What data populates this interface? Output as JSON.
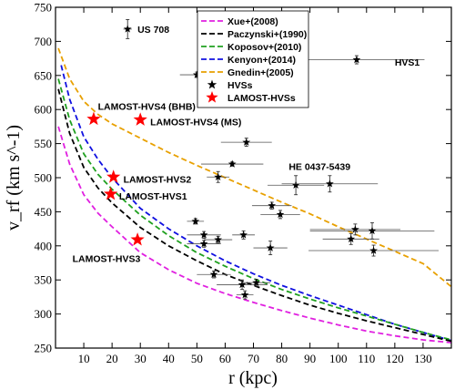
{
  "chart_data": {
    "type": "scatter",
    "title": "",
    "xlabel": "r (kpc)",
    "ylabel": "v_rf (km s^-1)",
    "xlim": [
      0,
      140
    ],
    "ylim": [
      250,
      750
    ],
    "x_ticks": [
      10,
      20,
      30,
      40,
      50,
      60,
      70,
      80,
      90,
      100,
      110,
      120,
      130
    ],
    "y_ticks": [
      250,
      300,
      350,
      400,
      450,
      500,
      550,
      600,
      650,
      700,
      750
    ],
    "grid": false,
    "legend_position": "top-center",
    "legend": [
      {
        "label": "Xue+(2008)",
        "kind": "line",
        "color": "#e020e0"
      },
      {
        "label": "Paczynski+(1990)",
        "kind": "line",
        "color": "#000000"
      },
      {
        "label": "Koposov+(2010)",
        "kind": "line",
        "color": "#20a020"
      },
      {
        "label": "Kenyon+(2014)",
        "kind": "line",
        "color": "#1010e0"
      },
      {
        "label": "Gnedin+(2005)",
        "kind": "line",
        "color": "#e8a000"
      },
      {
        "label": "HVSs",
        "kind": "marker",
        "color": "#000000",
        "marker": "star"
      },
      {
        "label": "LAMOST-HVSs",
        "kind": "marker",
        "color": "#ff0000",
        "marker": "star"
      }
    ],
    "curves": [
      {
        "name": "Gnedin+(2005)",
        "color": "#e8a000",
        "x": [
          1,
          5,
          10,
          15,
          20,
          30,
          40,
          50,
          60,
          70,
          80,
          90,
          100,
          110,
          120,
          130,
          140
        ],
        "y": [
          690,
          645,
          612,
          593,
          579,
          558,
          537,
          518,
          500,
          482,
          464,
          447,
          428,
          410,
          392,
          374,
          340
        ]
      },
      {
        "name": "Kenyon+(2014)",
        "color": "#1010e0",
        "x": [
          2,
          5,
          10,
          15,
          20,
          30,
          40,
          50,
          60,
          70,
          80,
          90,
          100,
          110,
          120,
          130,
          140
        ],
        "y": [
          665,
          615,
          560,
          527,
          500,
          455,
          425,
          400,
          378,
          359,
          342,
          327,
          313,
          299,
          285,
          273,
          261
        ]
      },
      {
        "name": "Koposov+(2010)",
        "color": "#20a020",
        "x": [
          1,
          5,
          10,
          15,
          20,
          30,
          40,
          50,
          60,
          70,
          80,
          90,
          100,
          110,
          120,
          130,
          140
        ],
        "y": [
          645,
          585,
          535,
          505,
          483,
          445,
          415,
          390,
          370,
          352,
          336,
          322,
          309,
          297,
          285,
          273,
          262
        ]
      },
      {
        "name": "Paczynski+(1990)",
        "color": "#000000",
        "x": [
          1,
          5,
          10,
          15,
          20,
          30,
          40,
          50,
          60,
          70,
          80,
          90,
          100,
          110,
          120,
          130,
          140
        ],
        "y": [
          630,
          565,
          515,
          485,
          463,
          427,
          400,
          378,
          358,
          342,
          327,
          313,
          301,
          290,
          280,
          270,
          260
        ]
      },
      {
        "name": "Xue+(2008)",
        "color": "#e020e0",
        "x": [
          1,
          5,
          10,
          15,
          20,
          30,
          40,
          50,
          60,
          70,
          80,
          90,
          100,
          110,
          120,
          130,
          140
        ],
        "y": [
          575,
          520,
          475,
          448,
          428,
          390,
          365,
          345,
          330,
          317,
          305,
          294,
          284,
          275,
          268,
          262,
          258
        ]
      }
    ],
    "hvs_points": [
      {
        "x": 25.5,
        "y": 718,
        "xerr": 1.5,
        "yerr": 14
      },
      {
        "x": 50.0,
        "y": 651,
        "xerr": 6.0,
        "yerr": 4
      },
      {
        "x": 106.5,
        "y": 673,
        "xerr": 24.0,
        "yerr": 6
      },
      {
        "x": 67.5,
        "y": 552,
        "xerr": 9.0,
        "yerr": 6
      },
      {
        "x": 62.5,
        "y": 520,
        "xerr": 11.0,
        "yerr": 3
      },
      {
        "x": 57.5,
        "y": 501,
        "xerr": 4.0,
        "yerr": 8
      },
      {
        "x": 85.0,
        "y": 489,
        "xerr": 10.0,
        "yerr": 14
      },
      {
        "x": 97.0,
        "y": 491,
        "xerr": 17.0,
        "yerr": 12
      },
      {
        "x": 76.5,
        "y": 459,
        "xerr": 7.0,
        "yerr": 5
      },
      {
        "x": 79.5,
        "y": 446,
        "xerr": 7.0,
        "yerr": 6
      },
      {
        "x": 49.5,
        "y": 436,
        "xerr": 3.0,
        "yerr": 4
      },
      {
        "x": 52.5,
        "y": 416,
        "xerr": 6.0,
        "yerr": 5
      },
      {
        "x": 52.5,
        "y": 403,
        "xerr": 6.0,
        "yerr": 5
      },
      {
        "x": 57.5,
        "y": 409,
        "xerr": 5.0,
        "yerr": 5
      },
      {
        "x": 66.5,
        "y": 416,
        "xerr": 4.0,
        "yerr": 6
      },
      {
        "x": 76.0,
        "y": 397,
        "xerr": 6.0,
        "yerr": 10
      },
      {
        "x": 106.0,
        "y": 424,
        "xerr": 16.0,
        "yerr": 8
      },
      {
        "x": 104.5,
        "y": 410,
        "xerr": 10.0,
        "yerr": 8
      },
      {
        "x": 112.0,
        "y": 422,
        "xerr": 22.0,
        "yerr": 12
      },
      {
        "x": 112.5,
        "y": 393,
        "xerr": 23.0,
        "yerr": 8
      },
      {
        "x": 56.0,
        "y": 358,
        "xerr": 6.0,
        "yerr": 5
      },
      {
        "x": 66.0,
        "y": 343,
        "xerr": 9.0,
        "yerr": 7
      },
      {
        "x": 71.0,
        "y": 346,
        "xerr": 5.0,
        "yerr": 5
      },
      {
        "x": 67.0,
        "y": 328,
        "xerr": 3.0,
        "yerr": 6
      }
    ],
    "lamost_points": [
      {
        "x": 13.5,
        "y": 586
      },
      {
        "x": 30.0,
        "y": 585
      },
      {
        "x": 20.5,
        "y": 501
      },
      {
        "x": 19.5,
        "y": 476
      },
      {
        "x": 29.0,
        "y": 409
      }
    ],
    "annotations": [
      {
        "text": "US 708",
        "x": 29.0,
        "y": 718,
        "anchor": "start"
      },
      {
        "text": "HVS1",
        "x": 120.0,
        "y": 670,
        "anchor": "start"
      },
      {
        "text": "LAMOST-HVS4 (BHB)",
        "x": 15.0,
        "y": 605,
        "anchor": "start"
      },
      {
        "text": "LAMOST-HVS4 (MS)",
        "x": 33.5,
        "y": 582,
        "anchor": "start"
      },
      {
        "text": "HE 0437-5439",
        "x": 82.5,
        "y": 517,
        "anchor": "start"
      },
      {
        "text": "LAMOST-HVS2",
        "x": 24.0,
        "y": 498,
        "anchor": "start"
      },
      {
        "text": "LAMOST-HVS1",
        "x": 22.5,
        "y": 473,
        "anchor": "start"
      },
      {
        "text": "LAMOST-HVS3",
        "x": 6.0,
        "y": 382,
        "anchor": "start"
      }
    ]
  }
}
